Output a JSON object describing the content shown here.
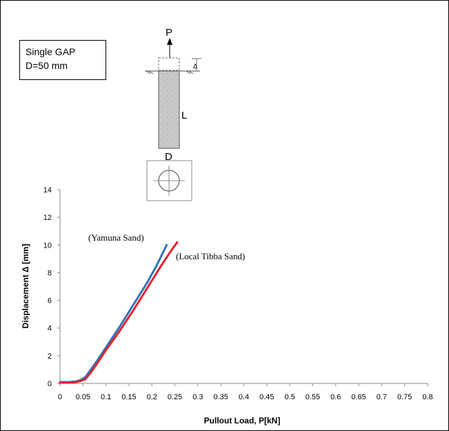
{
  "legend_box": {
    "line1": "Single GAP",
    "line2": "D=50 mm"
  },
  "diagram": {
    "load_label": "P",
    "length_label": "L",
    "diameter_label": "D",
    "displacement_symbol": "Δ"
  },
  "colors": {
    "yamuna": "#2E75B6",
    "tibba": "#E8202A",
    "axis": "#888888"
  },
  "chart_data": {
    "type": "line",
    "xlabel": "Pullout Load, P[kN]",
    "ylabel": "Displacement Δ [mm]",
    "xlim": [
      0,
      0.8
    ],
    "ylim": [
      0,
      14
    ],
    "x_ticks": [
      "0",
      "0.05",
      "0.1",
      "0.15",
      "0.2",
      "0.25",
      "0.3",
      "0.35",
      "0.4",
      "0.45",
      "0.5",
      "0.55",
      "0.6",
      "0.65",
      "0.7",
      "0.75",
      "0.8"
    ],
    "y_ticks": [
      "0",
      "2",
      "4",
      "6",
      "8",
      "10",
      "12",
      "14"
    ],
    "grid": false,
    "series": [
      {
        "name": "(Yamuna Sand)",
        "color": "#2E75B6",
        "x": [
          0,
          0.02,
          0.035,
          0.045,
          0.055,
          0.065,
          0.08,
          0.1,
          0.13,
          0.16,
          0.19,
          0.21,
          0.232
        ],
        "y": [
          0.1,
          0.1,
          0.15,
          0.25,
          0.45,
          0.9,
          1.6,
          2.6,
          4.1,
          5.7,
          7.3,
          8.5,
          10
        ]
      },
      {
        "name": "(Local Tibba Sand)",
        "color": "#E8202A",
        "x": [
          0,
          0.02,
          0.035,
          0.045,
          0.055,
          0.065,
          0.08,
          0.1,
          0.13,
          0.16,
          0.19,
          0.22,
          0.24,
          0.255
        ],
        "y": [
          0.05,
          0.05,
          0.1,
          0.18,
          0.3,
          0.7,
          1.4,
          2.4,
          3.8,
          5.3,
          6.9,
          8.5,
          9.5,
          10.2
        ]
      }
    ]
  }
}
